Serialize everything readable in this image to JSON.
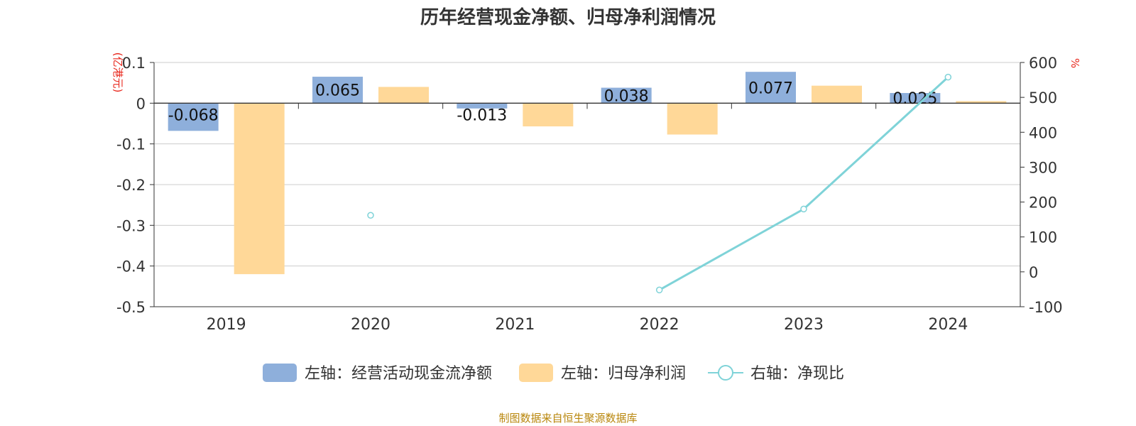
{
  "title": "历年经营现金净额、归母净利润情况",
  "footer": "制图数据来自恒生聚源数据库",
  "left_unit": "(亿港元)",
  "right_unit": "%",
  "colors": {
    "operating_cash": "#8EAFDB",
    "net_profit": "#FFD898",
    "ratio": "#7FD3D8",
    "unit_label": "#e8261b",
    "axis": "#333333",
    "grid": "#cccccc",
    "footer": "#b8860b"
  },
  "chart_data": {
    "type": "bar",
    "categories": [
      "2019",
      "2020",
      "2021",
      "2022",
      "2023",
      "2024"
    ],
    "left_axis": {
      "min": -0.5,
      "max": 0.1,
      "ticks": [
        "0.1",
        "0",
        "-0.1",
        "-0.2",
        "-0.3",
        "-0.4",
        "-0.5"
      ]
    },
    "right_axis": {
      "min": -100,
      "max": 600,
      "ticks": [
        "600",
        "500",
        "400",
        "300",
        "200",
        "100",
        "0",
        "-100"
      ]
    },
    "grid": true,
    "legend_position": "bottom",
    "series": [
      {
        "name": "左轴：经营活动现金流净额",
        "type": "bar",
        "axis": "left",
        "values": [
          -0.068,
          0.065,
          -0.013,
          0.038,
          0.077,
          0.025
        ],
        "labels": [
          "-0.068",
          "0.065",
          "-0.013",
          "0.038",
          "0.077",
          "0.025"
        ]
      },
      {
        "name": "左轴：归母净利润",
        "type": "bar",
        "axis": "left",
        "values": [
          -0.42,
          0.04,
          -0.057,
          -0.077,
          0.043,
          0.005
        ]
      },
      {
        "name": "右轴：净现比",
        "type": "line",
        "axis": "right",
        "values": [
          null,
          162,
          null,
          -52,
          180,
          558
        ]
      }
    ]
  }
}
